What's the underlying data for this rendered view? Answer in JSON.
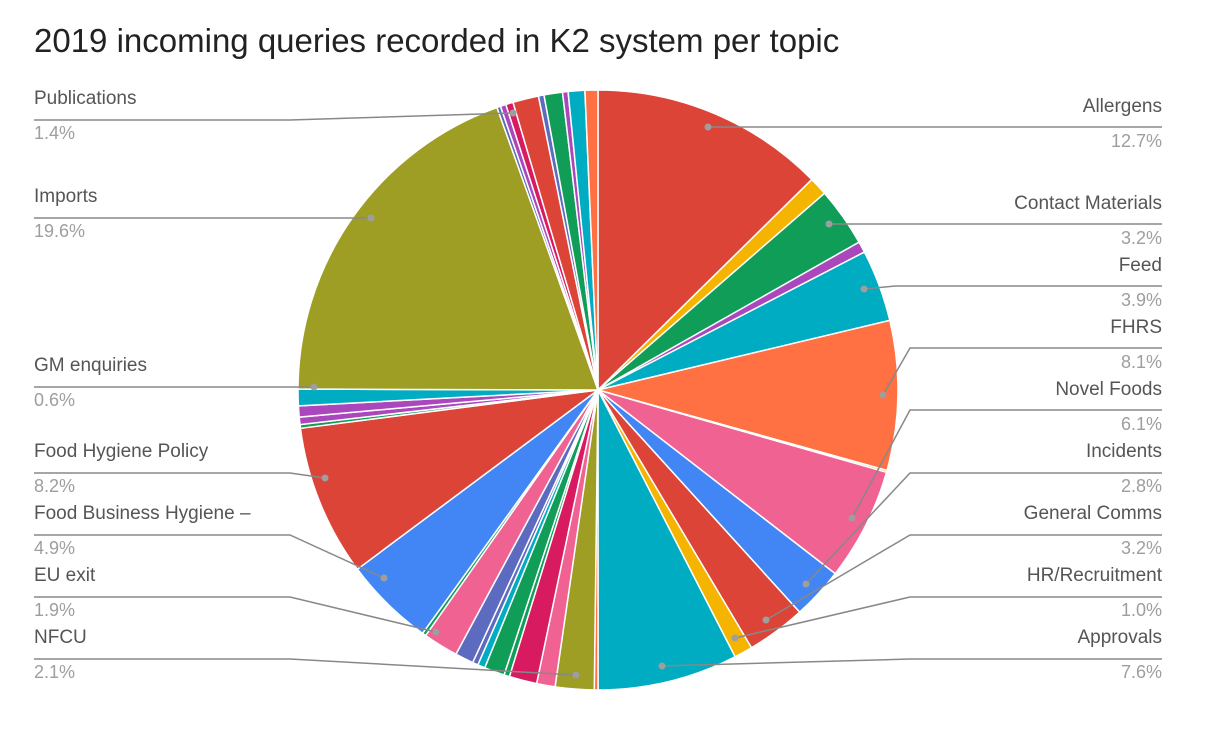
{
  "chart_data": {
    "type": "pie",
    "title": "2019 incoming queries recorded in K2 system per topic",
    "labeled_slices": [
      {
        "name": "Allergens",
        "percent": "12.7%",
        "color": "#db4437"
      },
      {
        "name": "Contact Materials",
        "percent": "3.2%",
        "color": "#0f9d58"
      },
      {
        "name": "Feed",
        "percent": "3.9%",
        "color": "#00acc1"
      },
      {
        "name": "FHRS",
        "percent": "8.1%",
        "color": "#ff7043"
      },
      {
        "name": "Novel Foods",
        "percent": "6.1%",
        "color": "#f06292"
      },
      {
        "name": "Incidents",
        "percent": "2.8%",
        "color": "#4285f4"
      },
      {
        "name": "General Comms",
        "percent": "3.2%",
        "color": "#db4437"
      },
      {
        "name": "HR/Recruitment",
        "percent": "1.0%",
        "color": "#f4b400"
      },
      {
        "name": "Approvals",
        "percent": "7.6%",
        "color": "#00acc1"
      },
      {
        "name": "NFCU",
        "percent": "2.1%",
        "color": "#9e9d24"
      },
      {
        "name": "EU exit",
        "percent": "1.9%",
        "color": "#f06292"
      },
      {
        "name": "Food Business Hygiene –",
        "percent": "4.9%",
        "color": "#4285f4"
      },
      {
        "name": "Food Hygiene Policy",
        "percent": "8.2%",
        "color": "#db4437"
      },
      {
        "name": "GM enquiries",
        "percent": "0.6%",
        "color": "#ab47bc"
      },
      {
        "name": "Imports",
        "percent": "19.6%",
        "color": "#9e9d24"
      },
      {
        "name": "Publications",
        "percent": "1.4%",
        "color": "#db4437"
      }
    ],
    "slice_values": [
      12.7,
      1.0,
      3.2,
      0.6,
      3.9,
      8.1,
      0.1,
      6.1,
      2.8,
      3.2,
      1.0,
      7.6,
      0.2,
      2.1,
      1.0,
      1.5,
      0.3,
      1.1,
      0.4,
      0.3,
      1.0,
      1.9,
      0.2,
      4.9,
      8.2,
      0.2,
      0.4,
      0.6,
      0.9,
      19.6,
      0.2,
      0.3,
      0.4,
      1.4,
      0.3,
      1.0,
      0.3,
      0.9,
      0.7
    ],
    "slice_colors": [
      "#db4437",
      "#f4b400",
      "#0f9d58",
      "#ab47bc",
      "#00acc1",
      "#ff7043",
      "#9e9d24",
      "#f06292",
      "#4285f4",
      "#db4437",
      "#f4b400",
      "#00acc1",
      "#ff7043",
      "#9e9d24",
      "#f06292",
      "#d81b60",
      "#0f9d58",
      "#0f9d58",
      "#00acc1",
      "#5c6bc0",
      "#5c6bc0",
      "#f06292",
      "#0f9d58",
      "#4285f4",
      "#db4437",
      "#0f9d58",
      "#ab47bc",
      "#ab47bc",
      "#00acc1",
      "#9e9d24",
      "#5c6bc0",
      "#ab47bc",
      "#d81b60",
      "#db4437",
      "#5c6bc0",
      "#0f9d58",
      "#ab47bc",
      "#00acc1",
      "#ff7043"
    ]
  }
}
